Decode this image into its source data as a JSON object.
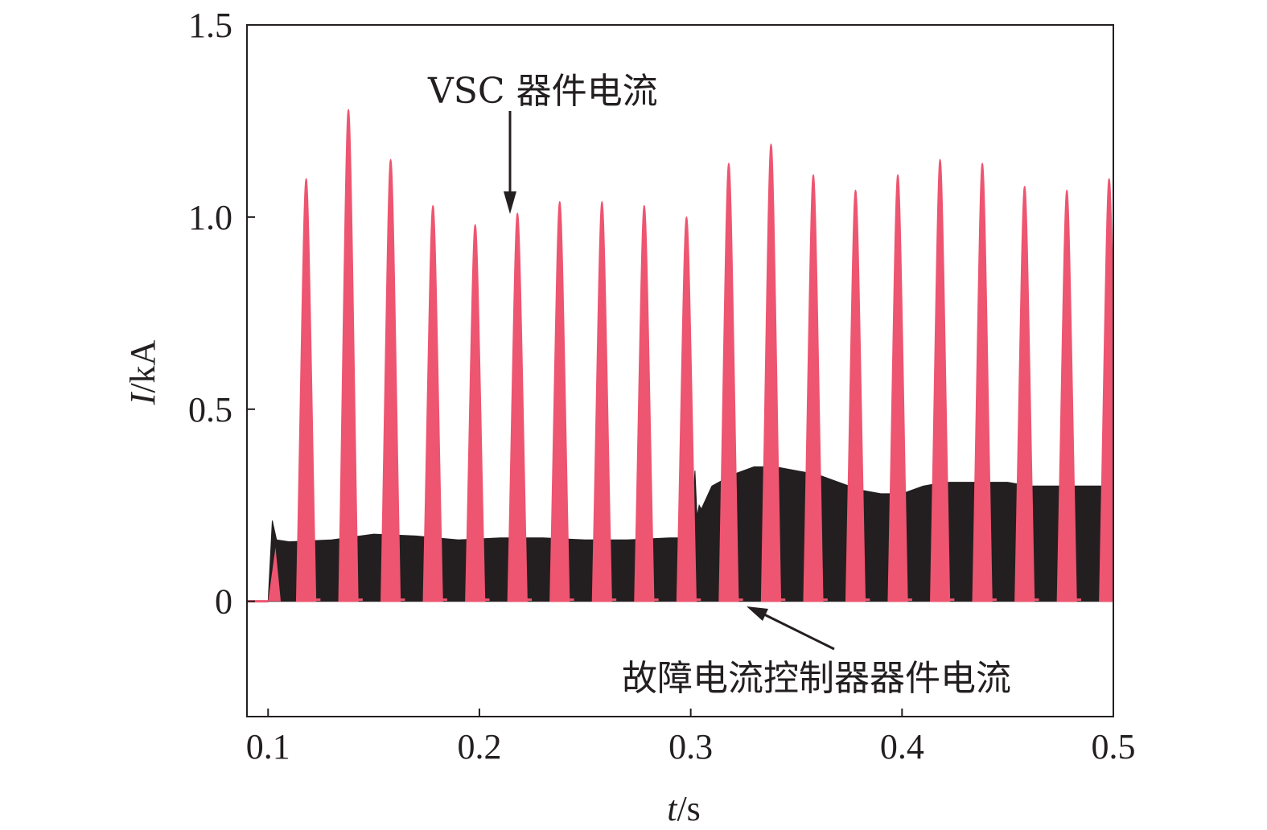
{
  "chart_data": {
    "type": "line",
    "title": "",
    "xlabel": {
      "var": "t",
      "unit": "/s"
    },
    "ylabel": {
      "var": "I",
      "unit": "/kA"
    },
    "xlim": [
      0.09,
      0.5
    ],
    "ylim": [
      -0.3,
      1.5
    ],
    "x_ticks": [
      0.1,
      0.2,
      0.3,
      0.4,
      0.5
    ],
    "x_tick_labels": [
      "0.1",
      "0.2",
      "0.3",
      "0.4",
      "0.5"
    ],
    "y_ticks": [
      0,
      0.5,
      1.0,
      1.5
    ],
    "y_tick_labels": [
      "0",
      "0.5",
      "1.0",
      "1.5"
    ],
    "grid": false,
    "series": [
      {
        "name": "VSC 器件电流",
        "color": "#ee5570",
        "style": "pulses",
        "pulse_times": [
          0.118,
          0.138,
          0.158,
          0.178,
          0.198,
          0.218,
          0.238,
          0.258,
          0.278,
          0.298,
          0.318,
          0.338,
          0.358,
          0.378,
          0.398,
          0.418,
          0.438,
          0.458,
          0.478,
          0.498
        ],
        "pulse_peaks": [
          1.1,
          1.28,
          1.15,
          1.03,
          0.98,
          1.01,
          1.04,
          1.04,
          1.03,
          1.0,
          1.14,
          1.19,
          1.11,
          1.07,
          1.11,
          1.15,
          1.14,
          1.08,
          1.07,
          1.1
        ]
      },
      {
        "name": "故障电流控制器器件电流",
        "color": "#231f20",
        "style": "envelope",
        "start": 0.1,
        "envelope_t": [
          0.1,
          0.102,
          0.104,
          0.11,
          0.13,
          0.15,
          0.17,
          0.19,
          0.21,
          0.23,
          0.25,
          0.27,
          0.29,
          0.3,
          0.302,
          0.303,
          0.304,
          0.305,
          0.31,
          0.32,
          0.33,
          0.34,
          0.35,
          0.36,
          0.37,
          0.38,
          0.39,
          0.4,
          0.41,
          0.42,
          0.43,
          0.44,
          0.45,
          0.46,
          0.47,
          0.48,
          0.49,
          0.5
        ],
        "envelope_v": [
          0.0,
          0.21,
          0.16,
          0.155,
          0.16,
          0.175,
          0.17,
          0.16,
          0.165,
          0.165,
          0.16,
          0.16,
          0.165,
          0.165,
          0.34,
          0.22,
          0.25,
          0.24,
          0.3,
          0.33,
          0.35,
          0.35,
          0.34,
          0.33,
          0.31,
          0.29,
          0.28,
          0.28,
          0.3,
          0.31,
          0.31,
          0.31,
          0.31,
          0.3,
          0.3,
          0.3,
          0.3,
          0.3
        ]
      }
    ],
    "annotations": [
      {
        "text": "VSC 器件电流",
        "points_to": [
          0.215,
          1.0
        ]
      },
      {
        "text": "故障电流控制器器件电流",
        "points_to": [
          0.325,
          0.0
        ]
      }
    ]
  }
}
